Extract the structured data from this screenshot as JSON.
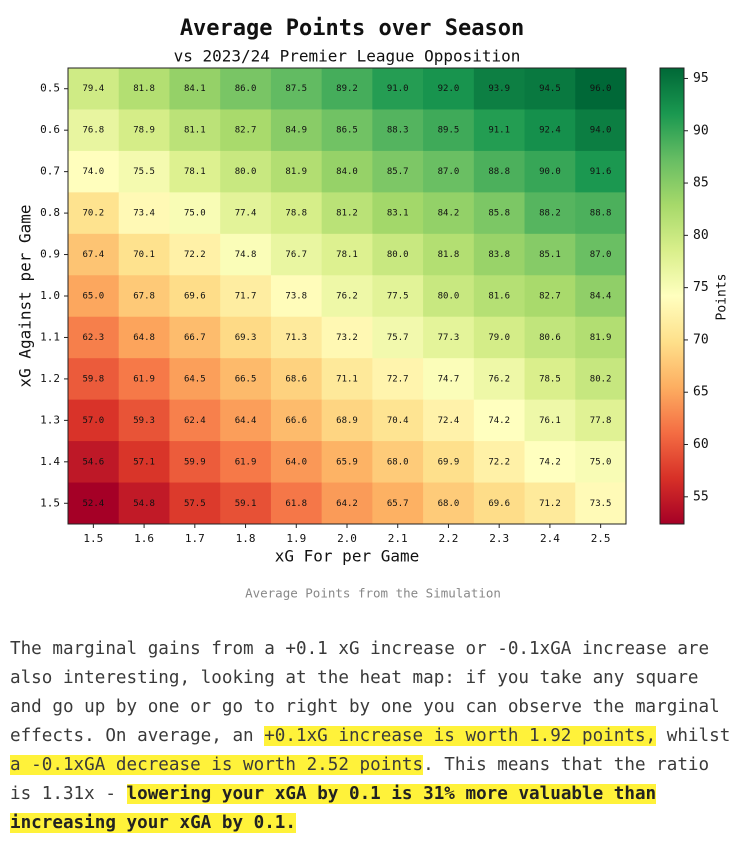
{
  "chart_data": {
    "type": "heatmap",
    "title": "Average Points over Season",
    "subtitle": "vs 2023/24 Premier League Opposition",
    "x_label": "xG For per Game",
    "y_label": "xG Against per Game",
    "colorbar_label": "Points",
    "colormap": "RdYlGn",
    "categories": [
      "1.5",
      "1.6",
      "1.7",
      "1.8",
      "1.9",
      "2.0",
      "2.1",
      "2.2",
      "2.3",
      "2.4",
      "2.5"
    ],
    "rows": [
      "0.5",
      "0.6",
      "0.7",
      "0.8",
      "0.9",
      "1.0",
      "1.1",
      "1.2",
      "1.3",
      "1.4",
      "1.5"
    ],
    "values": [
      [
        79.4,
        81.8,
        84.1,
        86.0,
        87.5,
        89.2,
        91.0,
        92.0,
        93.9,
        94.5,
        96.0
      ],
      [
        76.8,
        78.9,
        81.1,
        82.7,
        84.9,
        86.5,
        88.3,
        89.5,
        91.1,
        92.4,
        94.0
      ],
      [
        74.0,
        75.5,
        78.1,
        80.0,
        81.9,
        84.0,
        85.7,
        87.0,
        88.8,
        90.0,
        91.6
      ],
      [
        70.2,
        73.4,
        75.0,
        77.4,
        78.8,
        81.2,
        83.1,
        84.2,
        85.8,
        88.2,
        88.8
      ],
      [
        67.4,
        70.1,
        72.2,
        74.8,
        76.7,
        78.1,
        80.0,
        81.8,
        83.8,
        85.1,
        87.0
      ],
      [
        65.0,
        67.8,
        69.6,
        71.7,
        73.8,
        76.2,
        77.5,
        80.0,
        81.6,
        82.7,
        84.4
      ],
      [
        62.3,
        64.8,
        66.7,
        69.3,
        71.3,
        73.2,
        75.7,
        77.3,
        79.0,
        80.6,
        81.9
      ],
      [
        59.8,
        61.9,
        64.5,
        66.5,
        68.6,
        71.1,
        72.7,
        74.7,
        76.2,
        78.5,
        80.2
      ],
      [
        57.0,
        59.3,
        62.4,
        64.4,
        66.6,
        68.9,
        70.4,
        72.4,
        74.2,
        76.1,
        77.8
      ],
      [
        54.6,
        57.1,
        59.9,
        61.9,
        64.0,
        65.9,
        68.0,
        69.9,
        72.2,
        74.2,
        75.0
      ],
      [
        52.4,
        54.8,
        57.5,
        59.1,
        61.8,
        64.2,
        65.7,
        68.0,
        69.6,
        71.2,
        73.5
      ]
    ],
    "value_labels": [
      [
        "79.4",
        "81.8",
        "84.1",
        "86.0",
        "87.5",
        "89.2",
        "91.0",
        "92.0",
        "93.9",
        "94.5",
        "96.0"
      ],
      [
        "76.8",
        "78.9",
        "81.1",
        "82.7",
        "84.9",
        "86.5",
        "88.3",
        "89.5",
        "91.1",
        "92.4",
        "94.0"
      ],
      [
        "74.0",
        "75.5",
        "78.1",
        "80.0",
        "81.9",
        "84.0",
        "85.7",
        "87.0",
        "88.8",
        "90.0",
        "91.6"
      ],
      [
        "70.2",
        "73.4",
        "75.0",
        "77.4",
        "78.8",
        "81.2",
        "83.1",
        "84.2",
        "85.8",
        "88.2",
        "88.8"
      ],
      [
        "67.4",
        "70.1",
        "72.2",
        "74.8",
        "76.7",
        "78.1",
        "80.0",
        "81.8",
        "83.8",
        "85.1",
        "87.0"
      ],
      [
        "65.0",
        "67.8",
        "69.6",
        "71.7",
        "73.8",
        "76.2",
        "77.5",
        "80.0",
        "81.6",
        "82.7",
        "84.4"
      ],
      [
        "62.3",
        "64.8",
        "66.7",
        "69.3",
        "71.3",
        "73.2",
        "75.7",
        "77.3",
        "79.0",
        "80.6",
        "81.9"
      ],
      [
        "59.8",
        "61.9",
        "64.5",
        "66.5",
        "68.6",
        "71.1",
        "72.7",
        "74.7",
        "76.2",
        "78.5",
        "80.2"
      ],
      [
        "57.0",
        "59.3",
        "62.4",
        "64.4",
        "66.6",
        "68.9",
        "70.4",
        "72.4",
        "74.2",
        "76.1",
        "77.8"
      ],
      [
        "54.6",
        "57.1",
        "59.9",
        "61.9",
        "64.0",
        "65.9",
        "68.0",
        "69.9",
        "72.2",
        "74.2",
        "75.0"
      ],
      [
        "52.4",
        "54.8",
        "57.5",
        "59.1",
        "61.8",
        "64.2",
        "65.7",
        "68.0",
        "69.6",
        "71.2",
        "73.5"
      ]
    ],
    "clim": [
      52.4,
      96.0
    ],
    "cticks": [
      55,
      60,
      65,
      70,
      75,
      80,
      85,
      90,
      95
    ]
  },
  "caption": "Average Points from the Simulation",
  "paragraph": [
    {
      "style": "plain",
      "text": "The marginal gains from a +0.1 xG increase or -0.1xGA increase are also interesting, looking at the heat map: if you take any square and go up by one or go to right by one you can observe the marginal effects. On average, an "
    },
    {
      "style": "highlight",
      "text": "+0.1xG increase is worth 1.92 points,"
    },
    {
      "style": "plain",
      "text": " whilst "
    },
    {
      "style": "highlight",
      "text": "a -0.1xGA decrease is worth 2.52 points"
    },
    {
      "style": "plain",
      "text": ". This means that the ratio is 1.31x - "
    },
    {
      "style": "highlight-bold",
      "text": "lowering your xGA by 0.1 is 31% more valuable than increasing your xGA by 0.1."
    }
  ]
}
